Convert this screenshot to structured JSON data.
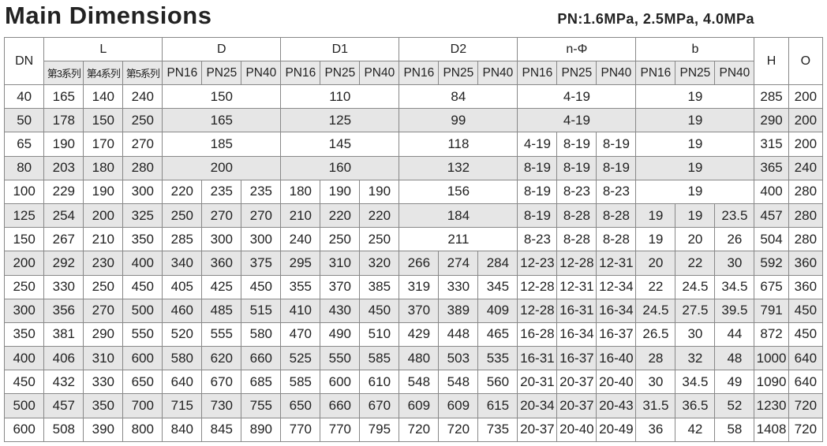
{
  "header": {
    "title": "Main Dimensions",
    "pressure": "PN:1.6MPa, 2.5MPa, 4.0MPa"
  },
  "table": {
    "columns": [
      {
        "label": "DN"
      },
      {
        "label": "L",
        "sub": [
          "第3系列",
          "第4系列",
          "第5系列"
        ]
      },
      {
        "label": "D",
        "sub": [
          "PN16",
          "PN25",
          "PN40"
        ]
      },
      {
        "label": "D1",
        "sub": [
          "PN16",
          "PN25",
          "PN40"
        ]
      },
      {
        "label": "D2",
        "sub": [
          "PN16",
          "PN25",
          "PN40"
        ]
      },
      {
        "label": "n-Φ",
        "sub": [
          "PN16",
          "PN25",
          "PN40"
        ]
      },
      {
        "label": "b",
        "sub": [
          "PN16",
          "PN25",
          "PN40"
        ]
      },
      {
        "label": "H"
      },
      {
        "label": "O"
      }
    ],
    "rows": [
      [
        40,
        [
          165,
          140,
          240
        ],
        150,
        110,
        84,
        "4-19",
        19,
        285,
        200
      ],
      [
        50,
        [
          178,
          150,
          250
        ],
        165,
        125,
        99,
        "4-19",
        19,
        290,
        200
      ],
      [
        65,
        [
          190,
          170,
          270
        ],
        185,
        145,
        118,
        [
          "4-19",
          "8-19",
          "8-19"
        ],
        19,
        315,
        200
      ],
      [
        80,
        [
          203,
          180,
          280
        ],
        200,
        160,
        132,
        [
          "8-19",
          "8-19",
          "8-19"
        ],
        19,
        365,
        240
      ],
      [
        100,
        [
          229,
          190,
          300
        ],
        [
          220,
          235,
          235
        ],
        [
          180,
          190,
          190
        ],
        156,
        [
          "8-19",
          "8-23",
          "8-23"
        ],
        19,
        400,
        280
      ],
      [
        125,
        [
          254,
          200,
          325
        ],
        [
          250,
          270,
          270
        ],
        [
          210,
          220,
          220
        ],
        184,
        [
          "8-19",
          "8-28",
          "8-28"
        ],
        [
          19,
          19,
          23.5
        ],
        457,
        280
      ],
      [
        150,
        [
          267,
          210,
          350
        ],
        [
          285,
          300,
          300
        ],
        [
          240,
          250,
          250
        ],
        211,
        [
          "8-23",
          "8-28",
          "8-28"
        ],
        [
          19,
          20,
          26
        ],
        504,
        280
      ],
      [
        200,
        [
          292,
          230,
          400
        ],
        [
          340,
          360,
          375
        ],
        [
          295,
          310,
          320
        ],
        [
          266,
          274,
          284
        ],
        [
          "12-23",
          "12-28",
          "12-31"
        ],
        [
          20,
          22,
          30
        ],
        592,
        360
      ],
      [
        250,
        [
          330,
          250,
          450
        ],
        [
          405,
          425,
          450
        ],
        [
          355,
          370,
          385
        ],
        [
          319,
          330,
          345
        ],
        [
          "12-28",
          "12-31",
          "12-34"
        ],
        [
          22,
          24.5,
          34.5
        ],
        675,
        360
      ],
      [
        300,
        [
          356,
          270,
          500
        ],
        [
          460,
          485,
          515
        ],
        [
          410,
          430,
          450
        ],
        [
          370,
          389,
          409
        ],
        [
          "12-28",
          "16-31",
          "16-34"
        ],
        [
          24.5,
          27.5,
          39.5
        ],
        791,
        450
      ],
      [
        350,
        [
          381,
          290,
          550
        ],
        [
          520,
          555,
          580
        ],
        [
          470,
          490,
          510
        ],
        [
          429,
          448,
          465
        ],
        [
          "16-28",
          "16-34",
          "16-37"
        ],
        [
          26.5,
          30,
          44
        ],
        872,
        450
      ],
      [
        400,
        [
          406,
          310,
          600
        ],
        [
          580,
          620,
          660
        ],
        [
          525,
          550,
          585
        ],
        [
          480,
          503,
          535
        ],
        [
          "16-31",
          "16-37",
          "16-40"
        ],
        [
          28,
          32,
          48
        ],
        1000,
        640
      ],
      [
        450,
        [
          432,
          330,
          650
        ],
        [
          640,
          670,
          685
        ],
        [
          585,
          600,
          610
        ],
        [
          548,
          548,
          560
        ],
        [
          "20-31",
          "20-37",
          "20-40"
        ],
        [
          30,
          34.5,
          49
        ],
        1090,
        640
      ],
      [
        500,
        [
          457,
          350,
          700
        ],
        [
          715,
          730,
          755
        ],
        [
          650,
          660,
          670
        ],
        [
          609,
          609,
          615
        ],
        [
          "20-34",
          "20-37",
          "20-43"
        ],
        [
          31.5,
          36.5,
          52
        ],
        1230,
        720
      ],
      [
        600,
        [
          508,
          390,
          800
        ],
        [
          840,
          845,
          890
        ],
        [
          770,
          770,
          795
        ],
        [
          720,
          720,
          735
        ],
        [
          "20-37",
          "20-40",
          "20-49"
        ],
        [
          36,
          42,
          58
        ],
        1408,
        720
      ]
    ]
  }
}
